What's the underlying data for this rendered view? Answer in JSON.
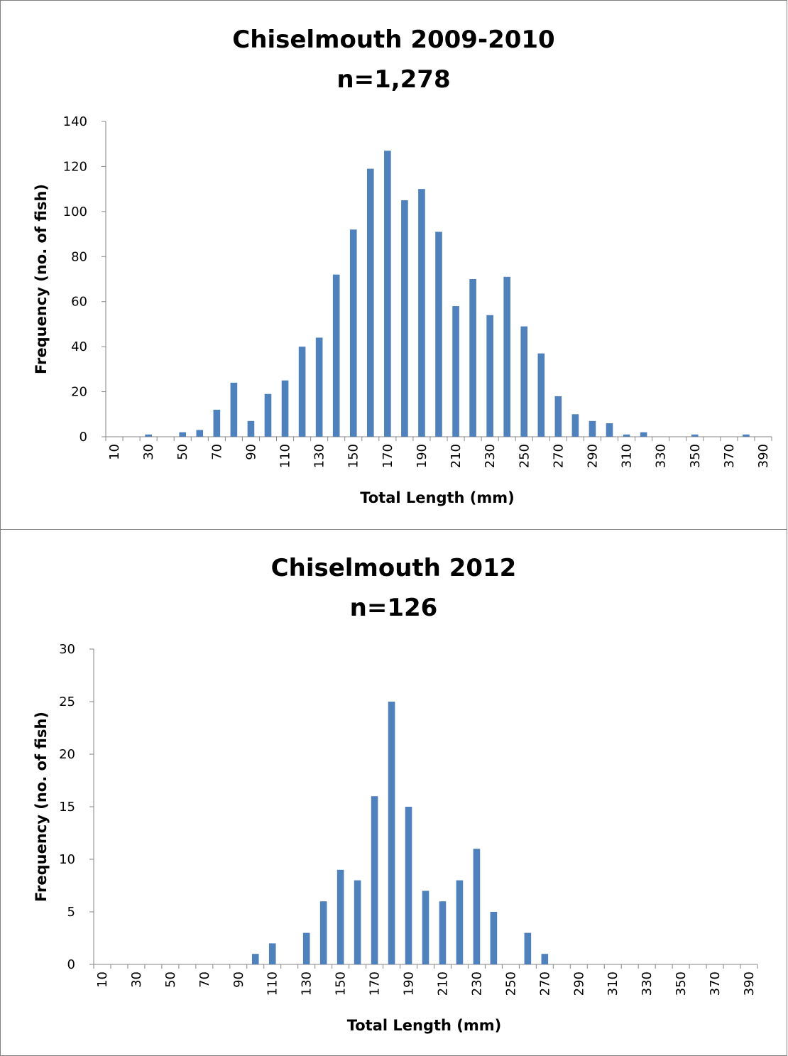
{
  "chart_data": [
    {
      "type": "bar",
      "title": "Chiselmouth 2009-2010",
      "subtitle": "n=1,278",
      "xlabel": "Total Length (mm)",
      "ylabel": "Frequency (no. of fish)",
      "ylim": [
        0,
        140
      ],
      "yticks": [
        "0",
        "20",
        "40",
        "60",
        "80",
        "100",
        "120",
        "140"
      ],
      "xticks": [
        "10",
        "30",
        "50",
        "70",
        "90",
        "110",
        "130",
        "150",
        "170",
        "190",
        "210",
        "230",
        "250",
        "270",
        "290",
        "310",
        "330",
        "350",
        "370",
        "390"
      ],
      "categories": [
        10,
        20,
        30,
        40,
        50,
        60,
        70,
        80,
        90,
        100,
        110,
        120,
        130,
        140,
        150,
        160,
        170,
        180,
        190,
        200,
        210,
        220,
        230,
        240,
        250,
        260,
        270,
        280,
        290,
        300,
        310,
        320,
        330,
        340,
        350,
        360,
        370,
        380,
        390
      ],
      "values": [
        0,
        0,
        1,
        0,
        2,
        3,
        12,
        24,
        7,
        19,
        25,
        40,
        44,
        72,
        92,
        119,
        127,
        105,
        110,
        91,
        58,
        70,
        54,
        71,
        49,
        37,
        18,
        10,
        7,
        6,
        1,
        2,
        0,
        0,
        1,
        0,
        0,
        1,
        0
      ],
      "bar_color": "#4f81bd",
      "grid": false,
      "legend": "none"
    },
    {
      "type": "bar",
      "title": "Chiselmouth 2012",
      "subtitle": "n=126",
      "xlabel": "Total Length (mm)",
      "ylabel": "Frequency (no. of fish)",
      "ylim": [
        0,
        30
      ],
      "yticks": [
        "0",
        "5",
        "10",
        "15",
        "20",
        "25",
        "30"
      ],
      "xticks": [
        "10",
        "30",
        "50",
        "70",
        "90",
        "110",
        "130",
        "150",
        "170",
        "190",
        "210",
        "230",
        "250",
        "270",
        "290",
        "310",
        "330",
        "350",
        "370",
        "390"
      ],
      "categories": [
        10,
        20,
        30,
        40,
        50,
        60,
        70,
        80,
        90,
        100,
        110,
        120,
        130,
        140,
        150,
        160,
        170,
        180,
        190,
        200,
        210,
        220,
        230,
        240,
        250,
        260,
        270,
        280,
        290,
        300,
        310,
        320,
        330,
        340,
        350,
        360,
        370,
        380,
        390
      ],
      "values": [
        0,
        0,
        0,
        0,
        0,
        0,
        0,
        0,
        0,
        1,
        2,
        0,
        3,
        6,
        9,
        8,
        16,
        25,
        15,
        7,
        6,
        8,
        11,
        5,
        0,
        3,
        1,
        0,
        0,
        0,
        0,
        0,
        0,
        0,
        0,
        0,
        0,
        0,
        0
      ],
      "bar_color": "#4f81bd",
      "grid": false,
      "legend": "none"
    }
  ]
}
